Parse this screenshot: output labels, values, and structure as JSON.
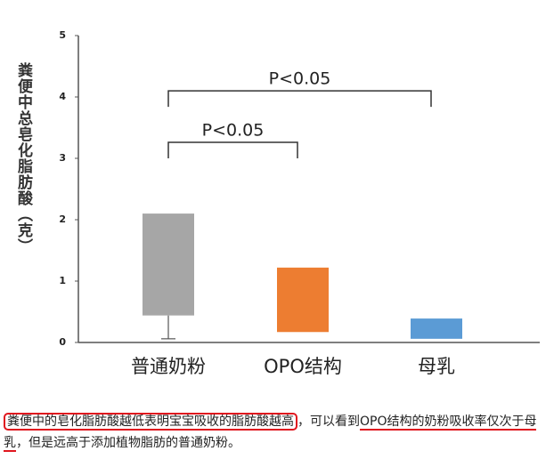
{
  "chart_data": {
    "type": "floating-box",
    "y_label": "粪便中总皂化脂肪酸（克）",
    "categories": [
      "普通奶粉",
      "OPO结构",
      "母乳"
    ],
    "box_low": [
      0.44,
      0.17,
      0.06
    ],
    "box_high": [
      2.1,
      1.22,
      0.39
    ],
    "whisker_low": [
      0.06,
      null,
      null
    ],
    "colors": [
      "#a6a6a6",
      "#ed7d31",
      "#5b9bd5"
    ],
    "ylim": [
      0,
      5
    ],
    "yticks": [
      0,
      1,
      2,
      3,
      4,
      5
    ],
    "annotations": [
      {
        "text": "P<0.05",
        "from": 0,
        "to": 1,
        "y": 3.26
      },
      {
        "text": "P<0.05",
        "from": 0,
        "to": 2,
        "y": 4.1
      }
    ]
  },
  "caption": [
    "粪便中的皂化脂肪酸越低表明宝宝吸收的脂肪酸越高",
    "，可以看到",
    "OPO结构",
    "的奶粉吸收率仅次于母乳",
    "，但是远高于添加植物脂肪的普通奶粉。"
  ]
}
